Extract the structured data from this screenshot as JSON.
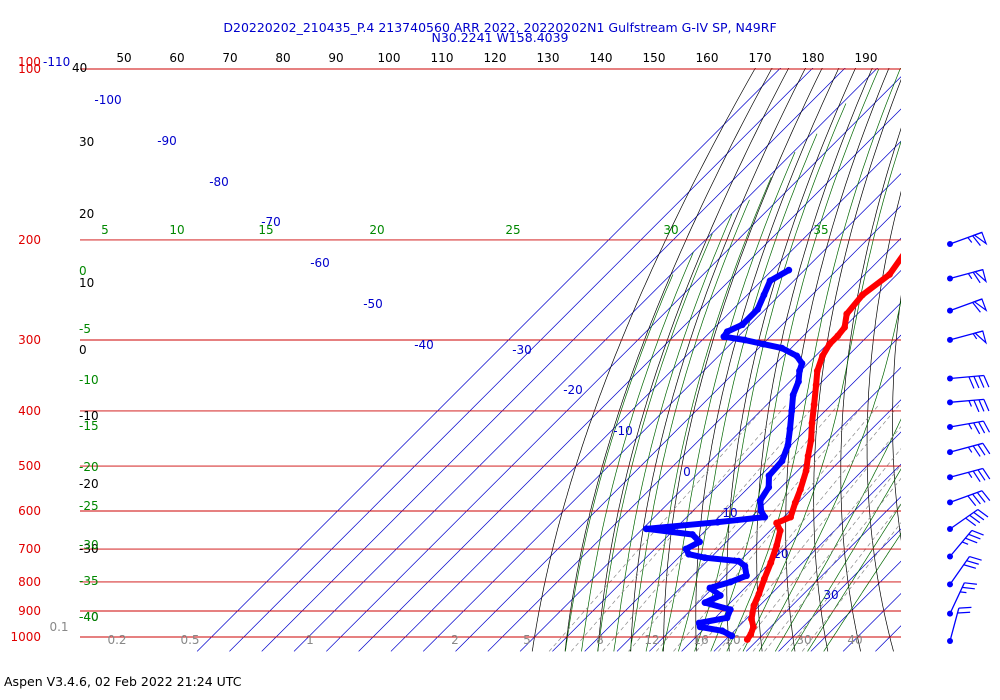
{
  "app_footer": "Aspen V3.4.6, 02 Feb 2022  21:24 UTC",
  "chart_data": {
    "type": "skew-t log-p sounding",
    "title": "D20220202_210435_P.4 213740560 ARR 2022, 20220202N1 Gulfstream G-IV SP, N49RF",
    "subtitle": "N30.2241 W158.4039",
    "pressure_labels": [
      {
        "label": "100",
        "p": 100
      },
      {
        "label": "200",
        "p": 200
      },
      {
        "label": "300",
        "p": 300
      },
      {
        "label": "400",
        "p": 400
      },
      {
        "label": "500",
        "p": 500
      },
      {
        "label": "600",
        "p": 600
      },
      {
        "label": "700",
        "p": 700
      },
      {
        "label": "800",
        "p": 800
      },
      {
        "label": "900",
        "p": 900
      },
      {
        "label": "1000",
        "p": 1000
      }
    ],
    "corner_labels": [
      "100",
      "-110",
      "40"
    ],
    "top_axis_labels": [
      "50",
      "60",
      "70",
      "80",
      "90",
      "100",
      "110",
      "120",
      "130",
      "140",
      "150",
      "160",
      "170",
      "180",
      "190"
    ],
    "height_labels_left": [
      "40",
      "30",
      "20",
      "10",
      "0",
      "-10",
      "-20",
      "-30",
      "-40"
    ],
    "isotherm_labels": [
      "-100",
      "-90",
      "-80",
      "-70",
      "-60",
      "-50",
      "-40",
      "-30",
      "-20",
      "-10",
      "0",
      "10",
      "20",
      "30"
    ],
    "dry_adiabat_labels_left": [
      "0",
      "-5",
      "-10",
      "-15",
      "-20",
      "-25",
      "-30",
      "-35",
      "-40"
    ],
    "dry_adiabat_labels_top": [
      "5",
      "10",
      "15",
      "20",
      "25",
      "30",
      "35"
    ],
    "mixing_ratio_labels": [
      "0.1",
      "0.2",
      "0.5",
      "1",
      "2",
      "5",
      "8",
      "12",
      "16",
      "20",
      "30",
      "40"
    ],
    "temperature_profile_C": [
      {
        "p": 196,
        "t": -55.0
      },
      {
        "p": 210,
        "t": -54.5
      },
      {
        "p": 230,
        "t": -52.5
      },
      {
        "p": 250,
        "t": -54.5
      },
      {
        "p": 270,
        "t": -53.5
      },
      {
        "p": 285,
        "t": -50.0
      },
      {
        "p": 295,
        "t": -49.5
      },
      {
        "p": 305,
        "t": -49.5
      },
      {
        "p": 320,
        "t": -48.0
      },
      {
        "p": 340,
        "t": -45.0
      },
      {
        "p": 360,
        "t": -41.0
      },
      {
        "p": 390,
        "t": -35.5
      },
      {
        "p": 420,
        "t": -30.5
      },
      {
        "p": 450,
        "t": -25.5
      },
      {
        "p": 480,
        "t": -21.5
      },
      {
        "p": 510,
        "t": -17.5
      },
      {
        "p": 550,
        "t": -13.5
      },
      {
        "p": 580,
        "t": -11.0
      },
      {
        "p": 615,
        "t": -8.0
      },
      {
        "p": 630,
        "t": -10.5
      },
      {
        "p": 650,
        "t": -7.0
      },
      {
        "p": 690,
        "t": -3.5
      },
      {
        "p": 740,
        "t": 0.0
      },
      {
        "p": 790,
        "t": 3.0
      },
      {
        "p": 840,
        "t": 6.0
      },
      {
        "p": 880,
        "t": 8.0
      },
      {
        "p": 930,
        "t": 11.5
      },
      {
        "p": 960,
        "t": 14.5
      },
      {
        "p": 990,
        "t": 16.0
      },
      {
        "p": 1010,
        "t": 16.5
      }
    ],
    "dewpoint_profile_C": [
      {
        "p": 226,
        "t": -85.0
      },
      {
        "p": 236,
        "t": -87.5
      },
      {
        "p": 250,
        "t": -85.0
      },
      {
        "p": 265,
        "t": -82.5
      },
      {
        "p": 282,
        "t": -82.5
      },
      {
        "p": 290,
        "t": -85.0
      },
      {
        "p": 296,
        "t": -84.5
      },
      {
        "p": 300,
        "t": -77.0
      },
      {
        "p": 305,
        "t": -70.0
      },
      {
        "p": 310,
        "t": -63.0
      },
      {
        "p": 320,
        "t": -56.0
      },
      {
        "p": 330,
        "t": -52.0
      },
      {
        "p": 340,
        "t": -50.5
      },
      {
        "p": 355,
        "t": -47.5
      },
      {
        "p": 375,
        "t": -45.0
      },
      {
        "p": 400,
        "t": -40.5
      },
      {
        "p": 430,
        "t": -35.5
      },
      {
        "p": 460,
        "t": -31.0
      },
      {
        "p": 490,
        "t": -28.0
      },
      {
        "p": 520,
        "t": -27.5
      },
      {
        "p": 545,
        "t": -24.0
      },
      {
        "p": 575,
        "t": -22.5
      },
      {
        "p": 600,
        "t": -19.0
      },
      {
        "p": 615,
        "t": -16.0
      },
      {
        "p": 628,
        "t": -29.0
      },
      {
        "p": 645,
        "t": -49.0
      },
      {
        "p": 660,
        "t": -33.0
      },
      {
        "p": 680,
        "t": -28.5
      },
      {
        "p": 700,
        "t": -30.5
      },
      {
        "p": 715,
        "t": -28.0
      },
      {
        "p": 725,
        "t": -22.0
      },
      {
        "p": 735,
        "t": -10.5
      },
      {
        "p": 750,
        "t": -7.0
      },
      {
        "p": 780,
        "t": -3.5
      },
      {
        "p": 800,
        "t": -6.5
      },
      {
        "p": 820,
        "t": -11.0
      },
      {
        "p": 845,
        "t": -5.5
      },
      {
        "p": 870,
        "t": -8.0
      },
      {
        "p": 895,
        "t": 2.0
      },
      {
        "p": 925,
        "t": 3.5
      },
      {
        "p": 945,
        "t": -3.5
      },
      {
        "p": 960,
        "t": -2.0
      },
      {
        "p": 975,
        "t": 6.0
      },
      {
        "p": 995,
        "t": 10.5
      }
    ],
    "wind_barbs": [
      {
        "p": 200,
        "speed_kt": 65,
        "dir_deg": 250
      },
      {
        "p": 230,
        "speed_kt": 65,
        "dir_deg": 255
      },
      {
        "p": 262,
        "speed_kt": 60,
        "dir_deg": 250
      },
      {
        "p": 295,
        "speed_kt": 55,
        "dir_deg": 255
      },
      {
        "p": 345,
        "speed_kt": 40,
        "dir_deg": 265
      },
      {
        "p": 380,
        "speed_kt": 35,
        "dir_deg": 265
      },
      {
        "p": 420,
        "speed_kt": 35,
        "dir_deg": 260
      },
      {
        "p": 465,
        "speed_kt": 35,
        "dir_deg": 255
      },
      {
        "p": 515,
        "speed_kt": 35,
        "dir_deg": 255
      },
      {
        "p": 570,
        "speed_kt": 40,
        "dir_deg": 250
      },
      {
        "p": 635,
        "speed_kt": 40,
        "dir_deg": 235
      },
      {
        "p": 710,
        "speed_kt": 35,
        "dir_deg": 220
      },
      {
        "p": 795,
        "speed_kt": 30,
        "dir_deg": 215
      },
      {
        "p": 895,
        "speed_kt": 25,
        "dir_deg": 205
      },
      {
        "p": 1000,
        "speed_kt": 20,
        "dir_deg": 195
      }
    ],
    "colors": {
      "temperature": "#ff0000",
      "dewpoint": "#0000ff",
      "isobar": "#cc0000",
      "isotherm": "#0000cc",
      "dry_adiabat": "#000000",
      "moist_adiabat": "#006600",
      "mixing_ratio": "#888888",
      "wind_barb": "#0000ff"
    },
    "grid": true,
    "legend": "none"
  }
}
